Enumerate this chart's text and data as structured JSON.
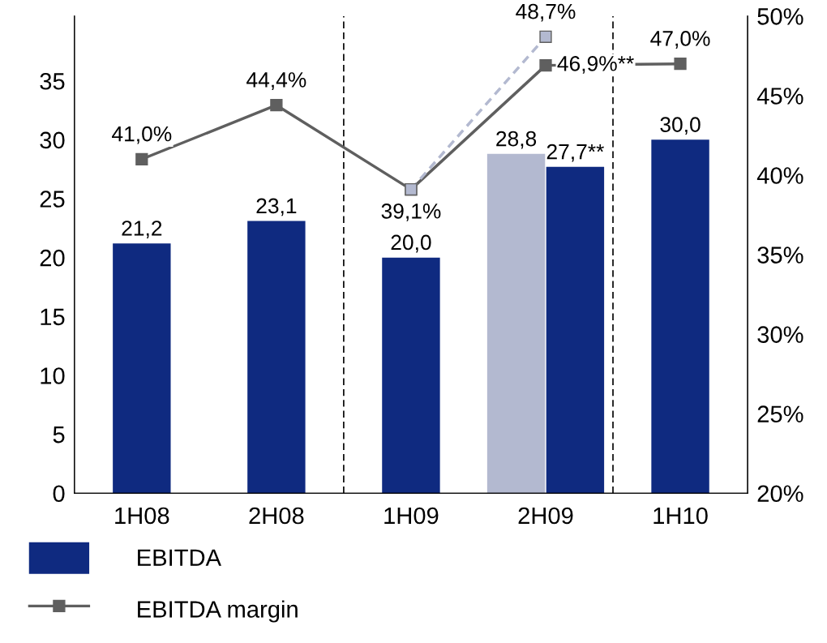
{
  "chart_data": {
    "type": "bar",
    "categories": [
      "1H08",
      "2H08",
      "1H09",
      "2H09",
      "1H10"
    ],
    "series": [
      {
        "name": "EBITDA",
        "color": "#0f2a80",
        "values": [
          21.2,
          23.1,
          20.0,
          27.7,
          30.0
        ],
        "value_labels": [
          "21,2",
          "23,1",
          "20,0",
          "27,7**",
          "30,0"
        ]
      },
      {
        "color": "#b3b9d0",
        "values": [
          null,
          null,
          null,
          28.8,
          null
        ],
        "value_labels": [
          null,
          null,
          null,
          "28,8",
          null
        ]
      },
      {
        "name": "EBITDA margin",
        "type": "line",
        "axis": "y2",
        "color": "#5f5f5f",
        "marker": "square",
        "line_style": "solid",
        "values": [
          41.0,
          44.4,
          39.1,
          46.9,
          47.0
        ],
        "value_labels": [
          "41,0%",
          "44,4%",
          "39,1%",
          "46,9%**",
          "47,0%"
        ]
      },
      {
        "type": "line",
        "axis": "y2",
        "color": "#b3b9d0",
        "marker": "square",
        "line_style": "dashed",
        "values": [
          null,
          null,
          39.1,
          48.7,
          null
        ],
        "value_labels": [
          null,
          null,
          null,
          "48,7%",
          null
        ]
      }
    ],
    "ylim": [
      0,
      40.5
    ],
    "yticks": [
      0,
      5,
      10,
      15,
      20,
      25,
      30,
      35
    ],
    "y2lim": [
      20,
      50
    ],
    "y2ticks": [
      {
        "value": 20,
        "label": "20%"
      },
      {
        "value": 25,
        "label": "25%"
      },
      {
        "value": 30,
        "label": "30%"
      },
      {
        "value": 35,
        "label": "35%"
      },
      {
        "value": 40,
        "label": "40%"
      },
      {
        "value": 45,
        "label": "45%"
      },
      {
        "value": 50,
        "label": "50%"
      }
    ],
    "grid": false,
    "legend": "bottom left"
  }
}
